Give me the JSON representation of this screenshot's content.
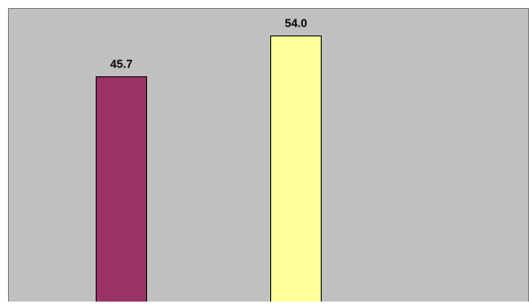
{
  "chart_data": {
    "type": "bar",
    "categories": [
      "",
      ""
    ],
    "series": [
      {
        "values": [
          45.7,
          54.0
        ],
        "data_labels": [
          "45.7",
          "54.0"
        ]
      }
    ],
    "title": "",
    "xlabel": "",
    "ylabel": "",
    "ylim": [
      0,
      59.5
    ],
    "grid": false,
    "legend": "none",
    "colors": {
      "plot_background": "#c0c0c0",
      "plot_border": "#808080",
      "bar_border": "#000000",
      "bars": [
        "#993366",
        "#ffff99"
      ]
    }
  }
}
